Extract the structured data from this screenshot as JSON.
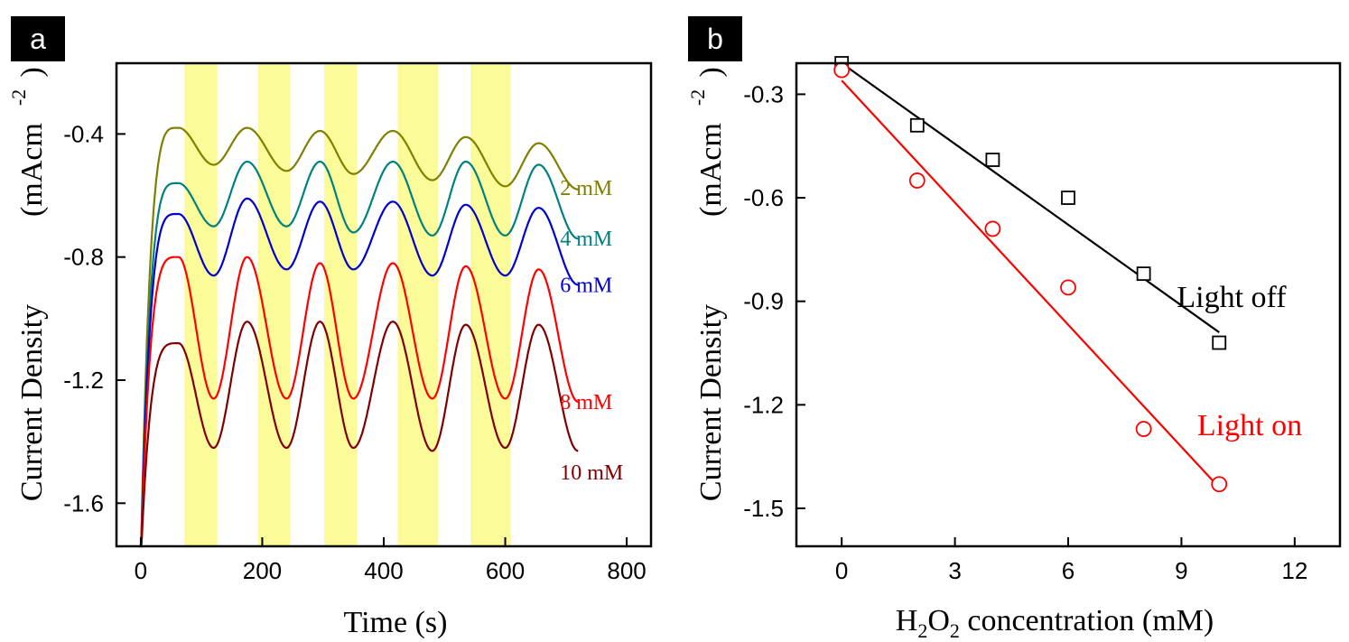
{
  "chart_data": [
    {
      "panel_label": "a",
      "type": "line",
      "title": "",
      "xlabel": "Time (s)",
      "ylabel": "Current Density",
      "yunit_base": "(mAcm",
      "yunit_exp": "-2",
      "yunit_close": ")",
      "xlim": [
        -40,
        840
      ],
      "ylim": [
        -1.74,
        -0.17
      ],
      "xticks": [
        0,
        200,
        400,
        600,
        800
      ],
      "yticks": [
        -0.4,
        -0.8,
        -1.2,
        -1.6
      ],
      "light_on_intervals": [
        [
          72,
          126
        ],
        [
          193,
          246
        ],
        [
          302,
          356
        ],
        [
          423,
          489
        ],
        [
          543,
          609
        ]
      ],
      "cycle_peaks_s": [
        62,
        175,
        295,
        415,
        535,
        655
      ],
      "cycle_troughs_s": [
        120,
        240,
        350,
        480,
        600
      ],
      "series": [
        {
          "name": "2 mM",
          "label": "2 mM",
          "color": "#808000",
          "peak": [
            -0.38,
            -0.38,
            -0.39,
            -0.39,
            -0.41,
            -0.43
          ],
          "trough": [
            -0.5,
            -0.52,
            -0.53,
            -0.55,
            -0.57
          ],
          "end": -0.58
        },
        {
          "name": "4 mM",
          "label": "4 mM",
          "color": "#008080",
          "peak": [
            -0.56,
            -0.49,
            -0.49,
            -0.49,
            -0.49,
            -0.5
          ],
          "trough": [
            -0.7,
            -0.7,
            -0.72,
            -0.73,
            -0.73
          ],
          "end": -0.74
        },
        {
          "name": "6 mM",
          "label": "6 mM",
          "color": "#0000d0",
          "peak": [
            -0.66,
            -0.61,
            -0.62,
            -0.62,
            -0.63,
            -0.64
          ],
          "trough": [
            -0.86,
            -0.84,
            -0.84,
            -0.86,
            -0.86
          ],
          "end": -0.89
        },
        {
          "name": "8 mM",
          "label": "8 mM",
          "color": "#ff0000",
          "peak": [
            -0.8,
            -0.8,
            -0.82,
            -0.82,
            -0.83,
            -0.84
          ],
          "trough": [
            -1.26,
            -1.26,
            -1.26,
            -1.26,
            -1.26
          ],
          "end": -1.27
        },
        {
          "name": "10 mM",
          "label": "10 mM",
          "color": "#800000",
          "peak": [
            -1.08,
            -1.01,
            -1.01,
            -1.01,
            -1.02,
            -1.02
          ],
          "trough": [
            -1.42,
            -1.42,
            -1.42,
            -1.43,
            -1.42
          ],
          "end": -1.43
        }
      ]
    },
    {
      "panel_label": "b",
      "type": "scatter",
      "title": "",
      "xlabel_pre": "H",
      "xlabel_sub1": "2",
      "xlabel_mid": "O",
      "xlabel_sub2": "2",
      "xlabel_post": " concentration (mM)",
      "ylabel": "Current Density",
      "yunit_base": "(mAcm",
      "yunit_exp": "-2",
      "yunit_close": ")",
      "xlim": [
        -1.2,
        13.2
      ],
      "ylim": [
        -1.61,
        -0.21
      ],
      "xticks": [
        0,
        3,
        6,
        9,
        12
      ],
      "yticks": [
        -0.3,
        -0.6,
        -0.9,
        -1.2,
        -1.5
      ],
      "series": [
        {
          "name": "Light off",
          "label": "Light off",
          "color": "#000000",
          "marker": "square",
          "x": [
            0,
            2,
            4,
            6,
            8,
            10
          ],
          "y": [
            -0.21,
            -0.39,
            -0.49,
            -0.6,
            -0.82,
            -1.02
          ],
          "fit": {
            "x": [
              0,
              10
            ],
            "y": [
              -0.21,
              -0.99
            ]
          }
        },
        {
          "name": "Light on",
          "label": "Light on",
          "color": "#ff0000",
          "marker": "circle",
          "x": [
            0,
            2,
            4,
            6,
            8,
            10
          ],
          "y": [
            -0.23,
            -0.55,
            -0.69,
            -0.86,
            -1.27,
            -1.43
          ],
          "fit": {
            "x": [
              0,
              10
            ],
            "y": [
              -0.26,
              -1.44
            ]
          }
        }
      ]
    }
  ]
}
